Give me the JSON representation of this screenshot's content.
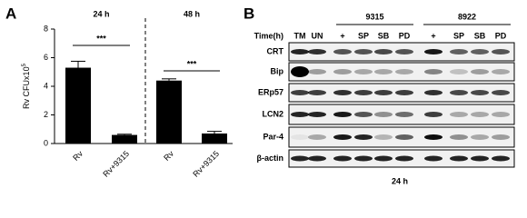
{
  "panels": {
    "a": "A",
    "b": "B"
  },
  "chart_data": {
    "type": "bar",
    "y_label": "Rv CFUx10",
    "y_label_sup": "5",
    "categories": [
      "Rv",
      "Rv+9315",
      "Rv",
      "Rv+9315"
    ],
    "values": [
      5.3,
      0.6,
      4.4,
      0.7
    ],
    "error": [
      0.45,
      0.05,
      0.12,
      0.15
    ],
    "color": "#000000",
    "ylim": [
      0,
      8
    ],
    "yticks": [
      0,
      2,
      4,
      6,
      8
    ],
    "groups": [
      "24 h",
      "48 h"
    ],
    "significance": [
      "***",
      "***"
    ]
  },
  "blot": {
    "time_header": "Time(h)",
    "groups": [
      "9315",
      "8922"
    ],
    "columns": [
      "TM",
      "UN",
      "+",
      "SP",
      "SB",
      "PD",
      "+",
      "SP",
      "SB",
      "PD"
    ],
    "rows": [
      "CRT",
      "Bip",
      "ERp57",
      "LCN2",
      "Par-4",
      "β-actin"
    ],
    "footer": "24 h"
  }
}
